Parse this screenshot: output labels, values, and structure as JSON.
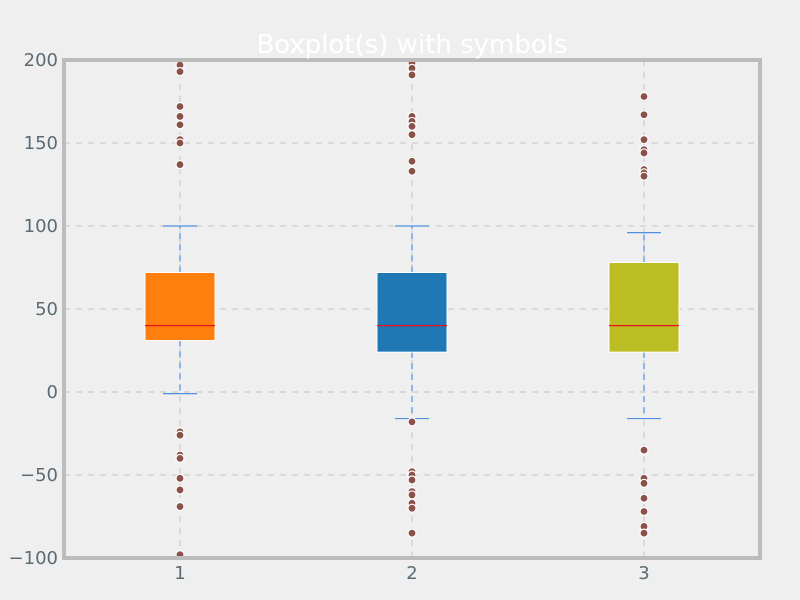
{
  "chart_data": {
    "type": "boxplot",
    "title": "Boxplot(s) with symbols",
    "xlabel": "",
    "ylabel": "",
    "categories": [
      "1",
      "2",
      "3"
    ],
    "xlim": [
      0.5,
      3.5
    ],
    "ylim": [
      -100,
      200
    ],
    "yticks": [
      -100,
      -50,
      0,
      50,
      100,
      150,
      200
    ],
    "grid": true,
    "colors": {
      "background": "#efefef",
      "frame": "#bcbcbc",
      "grid": "#c4c4c4",
      "whisker": "#4f8fe0",
      "median": "#e8101c",
      "outlier_fill": "#8b5048",
      "outlier_edge": "#ffffff",
      "title": "#ffffff",
      "tick": "#5b6b75"
    },
    "boxes": [
      {
        "label": "1",
        "color": "#ff7f0e",
        "whisker_low": -1,
        "q1": 31,
        "median": 40,
        "q3": 72,
        "whisker_high": 100,
        "outliers": [
          197,
          193,
          172,
          166,
          161,
          152,
          150,
          137,
          -24,
          -26,
          -38,
          -40,
          -52,
          -59,
          -69,
          -98
        ]
      },
      {
        "label": "2",
        "color": "#1f77b4",
        "whisker_low": -16,
        "q1": 24,
        "median": 40,
        "q3": 72,
        "whisker_high": 100,
        "outliers": [
          198,
          195,
          191,
          166,
          163,
          160,
          155,
          139,
          133,
          -18,
          -48,
          -50,
          -53,
          -60,
          -62,
          -67,
          -70,
          -85
        ]
      },
      {
        "label": "3",
        "color": "#bcbd22",
        "whisker_low": -16,
        "q1": 24,
        "median": 40,
        "q3": 78,
        "whisker_high": 96,
        "outliers": [
          178,
          167,
          152,
          146,
          144,
          134,
          132,
          130,
          -35,
          -52,
          -55,
          -64,
          -72,
          -81,
          -85
        ]
      }
    ]
  }
}
